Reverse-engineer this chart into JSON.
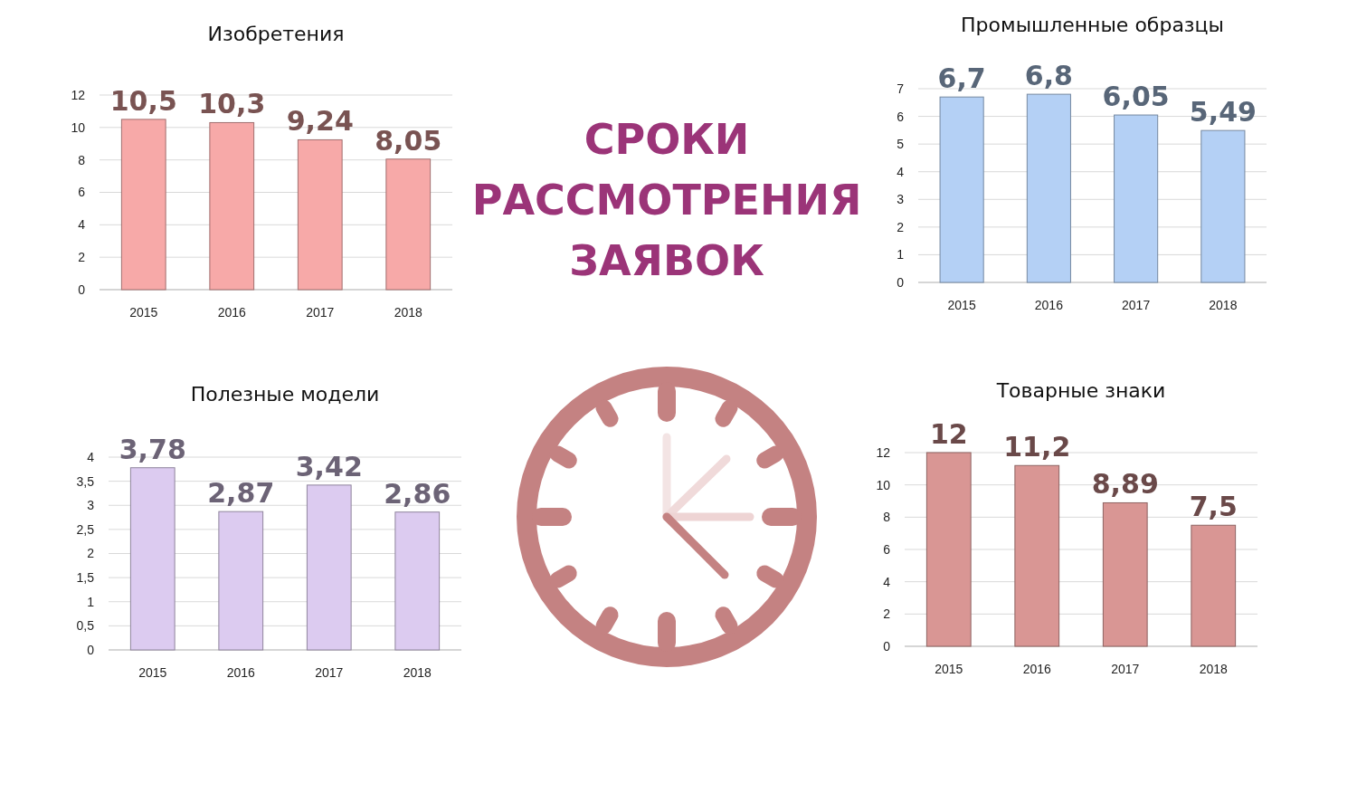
{
  "chart_data": [
    {
      "type": "bar",
      "title": "Изобретения",
      "categories": [
        "2015",
        "2016",
        "2017",
        "2018"
      ],
      "values": [
        10.5,
        10.3,
        9.24,
        8.05
      ],
      "value_labels": [
        "10,5",
        "10,3",
        "9,24",
        "8,05"
      ],
      "color": "#f7a9a8",
      "ylim": [
        0,
        12
      ],
      "yticks": [
        0,
        2,
        4,
        6,
        8,
        10,
        12
      ],
      "grid": "y"
    },
    {
      "type": "other",
      "title": "СРОКИ РАССМОТРЕНИЯ ЗАЯВОК"
    },
    {
      "type": "bar",
      "title": "Промышленные образцы",
      "categories": [
        "2015",
        "2016",
        "2017",
        "2018"
      ],
      "values": [
        6.7,
        6.8,
        6.05,
        5.49
      ],
      "value_labels": [
        "6,7",
        "6,8",
        "6,05",
        "5,49"
      ],
      "color": "#b4d0f5",
      "ylim": [
        0,
        7
      ],
      "yticks": [
        0,
        1,
        2,
        3,
        4,
        5,
        6,
        7
      ],
      "grid": "y"
    },
    {
      "type": "bar",
      "title": "Полезные модели",
      "categories": [
        "2015",
        "2016",
        "2017",
        "2018"
      ],
      "values": [
        3.78,
        2.87,
        3.42,
        2.86
      ],
      "value_labels": [
        "3,78",
        "2,87",
        "3,42",
        "2,86"
      ],
      "color": "#dccbf0",
      "ylim": [
        0,
        4
      ],
      "yticks": [
        0,
        {
          "value": 0.5,
          "label": "0,5"
        },
        1,
        {
          "value": 1.5,
          "label": "1,5"
        },
        2,
        {
          "value": 2.5,
          "label": "2,5"
        },
        3,
        {
          "value": 3.5,
          "label": "3,5"
        },
        4
      ],
      "grid": "y"
    },
    {
      "type": "bar",
      "title": "Товарные знаки",
      "categories": [
        "2015",
        "2016",
        "2017",
        "2018"
      ],
      "values": [
        12,
        11.2,
        8.89,
        7.5
      ],
      "value_labels": [
        "12",
        "11,2",
        "8,89",
        "7,5"
      ],
      "color": "#d99694",
      "ylim": [
        0,
        12
      ],
      "yticks": [
        0,
        2,
        4,
        6,
        8,
        10,
        12
      ],
      "grid": "y"
    }
  ]
}
